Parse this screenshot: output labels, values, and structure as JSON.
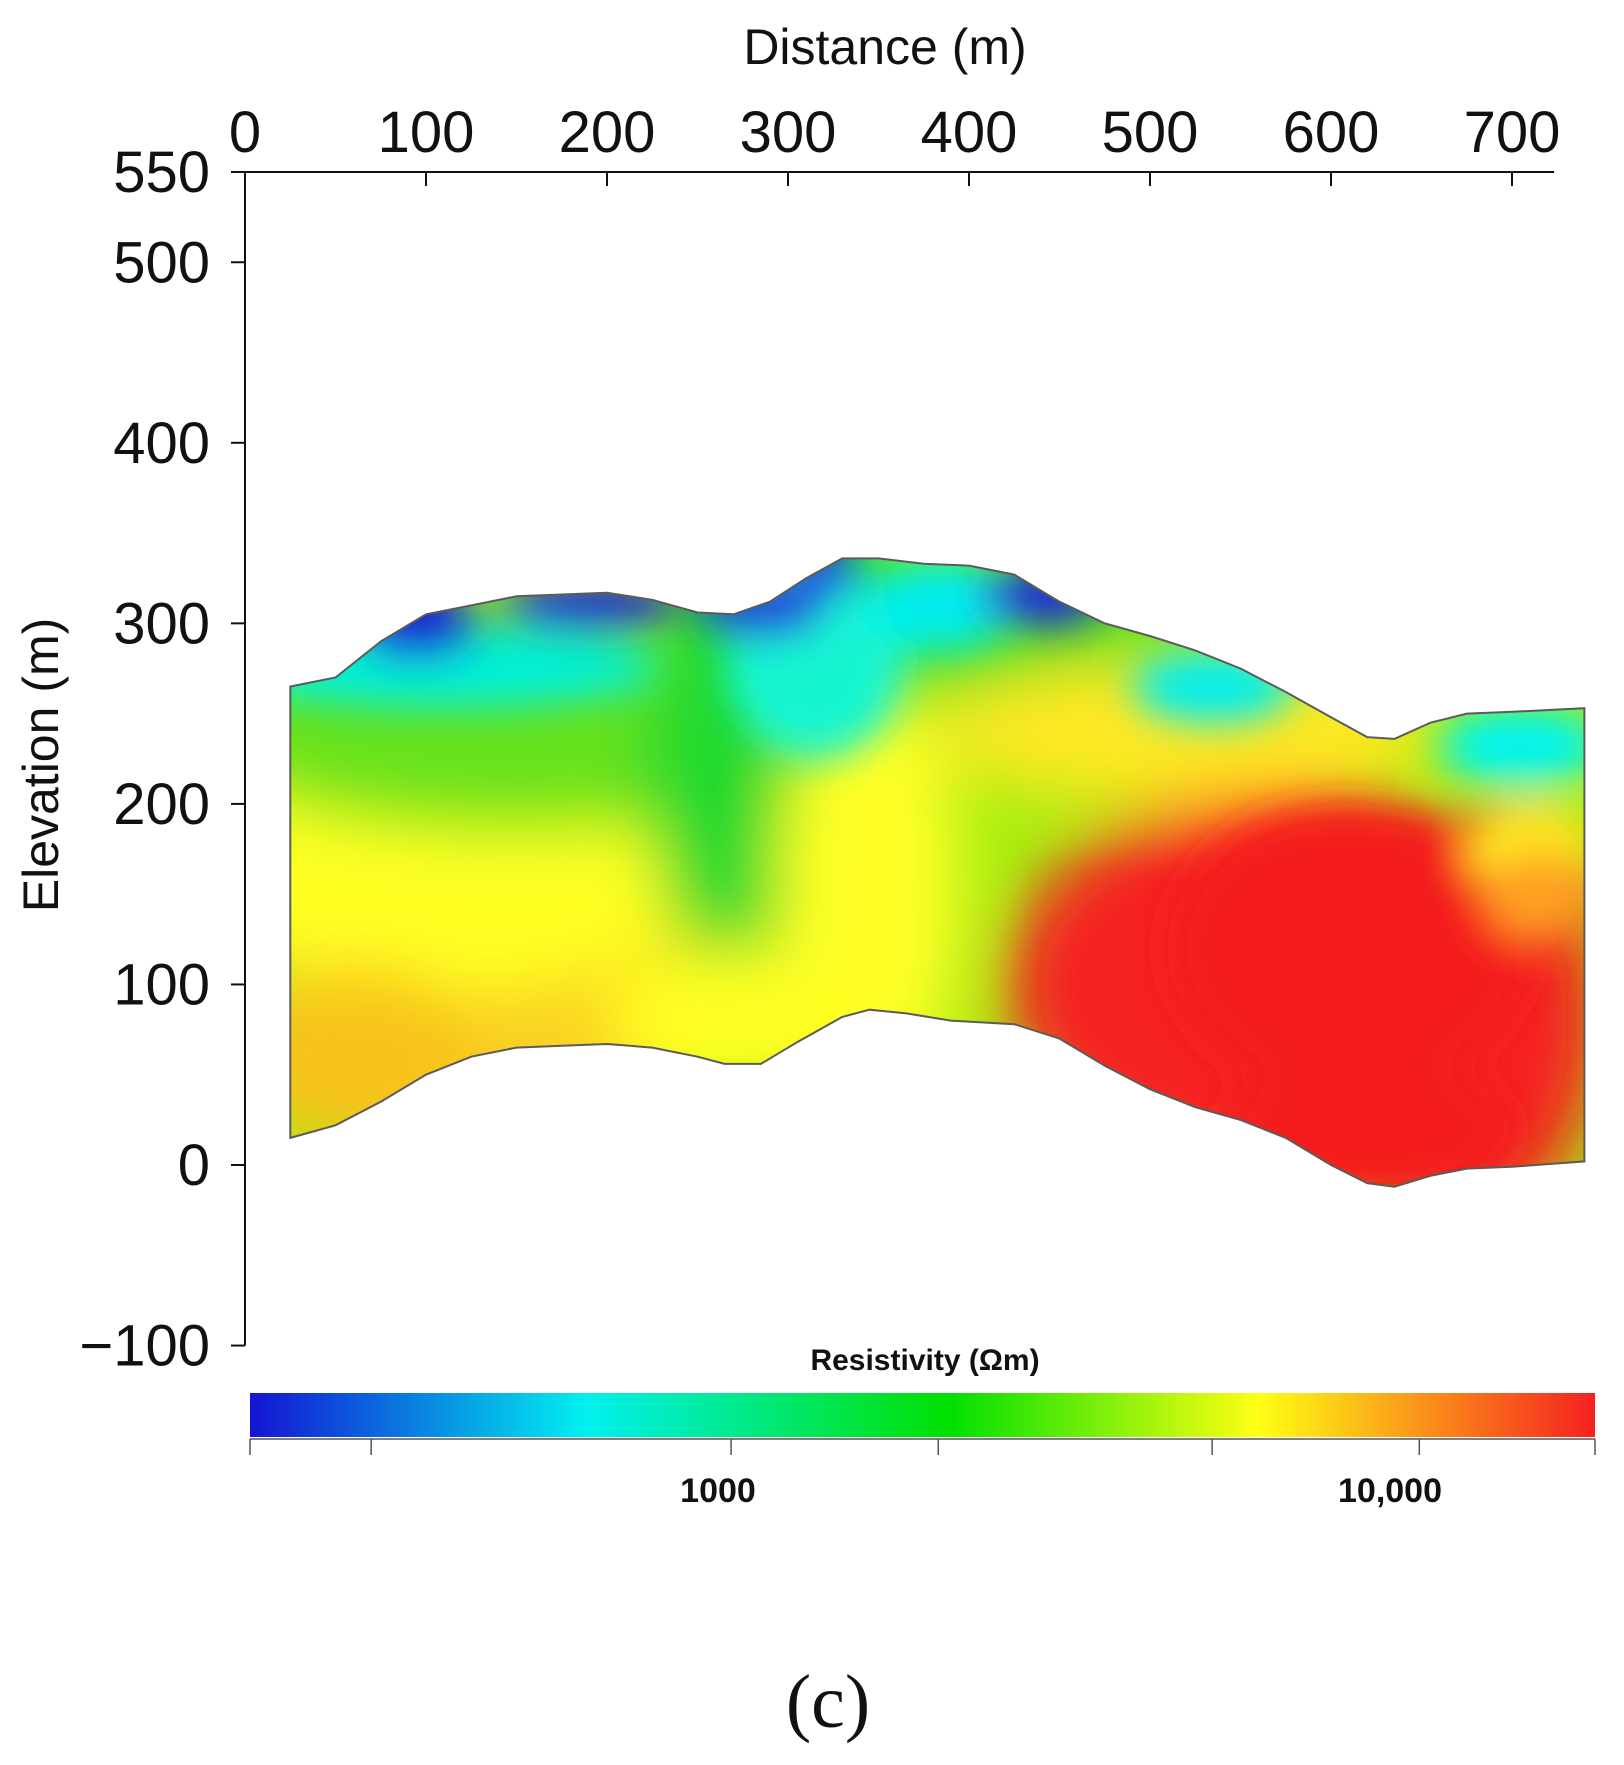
{
  "chart_data": {
    "type": "heatmap",
    "xlabel": "Distance (m)",
    "ylabel": "Elevation (m)",
    "x_ticks": [
      0,
      100,
      200,
      300,
      400,
      500,
      600,
      700
    ],
    "y_ticks": [
      550,
      500,
      400,
      300,
      200,
      100,
      0,
      -100
    ],
    "y_tick_labels": [
      "550",
      "500",
      "400",
      "300",
      "200",
      "100",
      "0",
      "−100"
    ],
    "xlim": [
      0,
      715
    ],
    "ylim": [
      -100,
      550
    ],
    "x_axis_position": "top",
    "grid": false,
    "section": {
      "top_surface": [
        [
          25,
          265
        ],
        [
          50,
          270
        ],
        [
          75,
          290
        ],
        [
          100,
          305
        ],
        [
          125,
          310
        ],
        [
          150,
          315
        ],
        [
          175,
          316
        ],
        [
          200,
          317
        ],
        [
          225,
          313
        ],
        [
          250,
          306
        ],
        [
          270,
          305
        ],
        [
          290,
          312
        ],
        [
          310,
          325
        ],
        [
          330,
          336
        ],
        [
          350,
          336
        ],
        [
          375,
          333
        ],
        [
          400,
          332
        ],
        [
          425,
          327
        ],
        [
          450,
          312
        ],
        [
          475,
          300
        ],
        [
          500,
          293
        ],
        [
          525,
          285
        ],
        [
          550,
          275
        ],
        [
          575,
          262
        ],
        [
          600,
          248
        ],
        [
          620,
          237
        ],
        [
          635,
          236
        ],
        [
          655,
          245
        ],
        [
          675,
          250
        ],
        [
          700,
          251
        ],
        [
          740,
          253
        ]
      ],
      "bottom_surface": [
        [
          25,
          15
        ],
        [
          50,
          22
        ],
        [
          75,
          35
        ],
        [
          100,
          50
        ],
        [
          125,
          60
        ],
        [
          150,
          65
        ],
        [
          175,
          66
        ],
        [
          200,
          67
        ],
        [
          225,
          65
        ],
        [
          250,
          60
        ],
        [
          265,
          56
        ],
        [
          285,
          56
        ],
        [
          305,
          68
        ],
        [
          330,
          82
        ],
        [
          345,
          86
        ],
        [
          365,
          84
        ],
        [
          390,
          80
        ],
        [
          425,
          78
        ],
        [
          450,
          70
        ],
        [
          475,
          55
        ],
        [
          500,
          42
        ],
        [
          525,
          32
        ],
        [
          550,
          25
        ],
        [
          575,
          15
        ],
        [
          600,
          0
        ],
        [
          620,
          -10
        ],
        [
          635,
          -12
        ],
        [
          655,
          -6
        ],
        [
          675,
          -2
        ],
        [
          700,
          -1
        ],
        [
          740,
          2
        ]
      ]
    },
    "colorbar": {
      "label": "Resistivity  (Ωm)",
      "scale": "log",
      "range": [
        200,
        18000
      ],
      "tick_values": [
        300,
        1000,
        2000,
        5000,
        10000,
        18000
      ],
      "tick_labels": [
        "1000",
        "10,000"
      ],
      "labeled_values": [
        1000,
        10000
      ],
      "colors": [
        "#1414d2",
        "#00f0f0",
        "#00e000",
        "#ffff14",
        "#f52020"
      ]
    },
    "panel_label": "(c)"
  }
}
